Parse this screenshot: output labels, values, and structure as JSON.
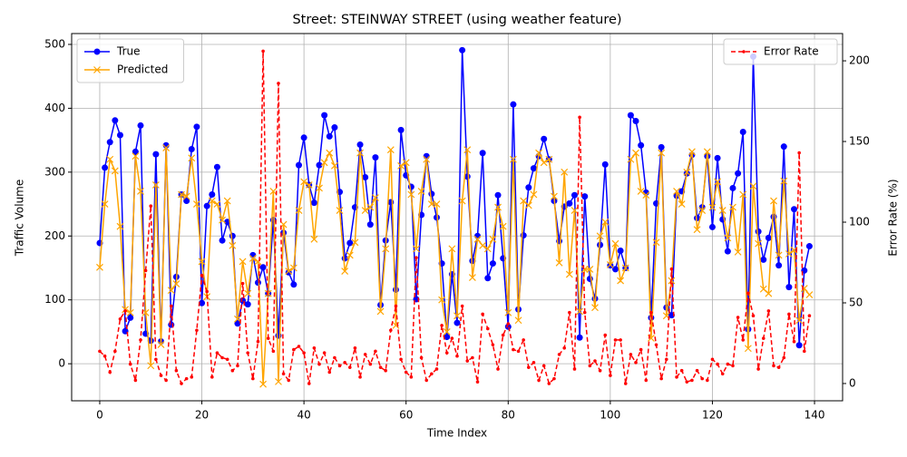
{
  "chart_data": {
    "type": "line",
    "title": "Street: STEINWAY STREET (using weather feature)",
    "x_label": "Time Index",
    "y_label": "Traffic Volume",
    "y2_label": "Error Rate (%)",
    "x": [
      0,
      1,
      2,
      3,
      4,
      5,
      6,
      7,
      8,
      9,
      10,
      11,
      12,
      13,
      14,
      15,
      16,
      17,
      18,
      19,
      20,
      21,
      22,
      23,
      24,
      25,
      26,
      27,
      28,
      29,
      30,
      31,
      32,
      33,
      34,
      35,
      36,
      37,
      38,
      39,
      40,
      41,
      42,
      43,
      44,
      45,
      46,
      47,
      48,
      49,
      50,
      51,
      52,
      53,
      54,
      55,
      56,
      57,
      58,
      59,
      60,
      61,
      62,
      63,
      64,
      65,
      66,
      67,
      68,
      69,
      70,
      71,
      72,
      73,
      74,
      75,
      76,
      77,
      78,
      79,
      80,
      81,
      82,
      83,
      84,
      85,
      86,
      87,
      88,
      89,
      90,
      91,
      92,
      93,
      94,
      95,
      96,
      97,
      98,
      99,
      100,
      101,
      102,
      103,
      104,
      105,
      106,
      107,
      108,
      109,
      110,
      111,
      112,
      113,
      114,
      115,
      116,
      117,
      118,
      119,
      120,
      121,
      122,
      123,
      124,
      125,
      126,
      127,
      128,
      129,
      130,
      131,
      132,
      133,
      134,
      135,
      136,
      137,
      138,
      139
    ],
    "xlim": [
      -5.5,
      145.5
    ],
    "xticks": [
      0,
      20,
      40,
      60,
      80,
      100,
      120,
      140
    ],
    "ylim": [
      -58,
      517
    ],
    "yticks": [
      0,
      100,
      200,
      300,
      400,
      500
    ],
    "y2lim": [
      -10.7,
      216.9
    ],
    "y2ticks": [
      0,
      50,
      100,
      150,
      200
    ],
    "grid": true,
    "legend": "upper left",
    "y2_legend": "upper right",
    "series": [
      {
        "name": "True",
        "color": "#0000ff",
        "marker": "o",
        "linestyle": "solid",
        "values": [
          189,
          307,
          347,
          381,
          358,
          51,
          72,
          332,
          373,
          47,
          36,
          328,
          35,
          342,
          61,
          136,
          265,
          255,
          336,
          371,
          95,
          247,
          265,
          308,
          193,
          222,
          200,
          63,
          99,
          93,
          170,
          127,
          151,
          110,
          225,
          44,
          205,
          143,
          124,
          311,
          354,
          280,
          252,
          311,
          389,
          356,
          370,
          269,
          165,
          189,
          245,
          343,
          292,
          218,
          323,
          92,
          193,
          253,
          116,
          366,
          295,
          277,
          101,
          233,
          325,
          266,
          229,
          157,
          42,
          140,
          64,
          491,
          293,
          161,
          200,
          330,
          134,
          157,
          264,
          165,
          58,
          406,
          85,
          201,
          276,
          306,
          325,
          352,
          320,
          255,
          192,
          246,
          251,
          264,
          41,
          262,
          133,
          102,
          186,
          312,
          154,
          148,
          177,
          150,
          389,
          380,
          342,
          268,
          72,
          251,
          339,
          88,
          76,
          263,
          270,
          298,
          327,
          228,
          245,
          325,
          214,
          322,
          226,
          176,
          275,
          298,
          363,
          54,
          481,
          207,
          163,
          197,
          230,
          154,
          340,
          120,
          242,
          29,
          146,
          184
        ]
      },
      {
        "name": "Predicted",
        "color": "#ffa500",
        "marker": "x",
        "linestyle": "solid",
        "values": [
          151,
          250,
          320,
          302,
          215,
          85,
          80,
          325,
          270,
          80,
          -3,
          280,
          30,
          338,
          115,
          125,
          265,
          262,
          322,
          250,
          160,
          105,
          255,
          250,
          225,
          255,
          185,
          70,
          160,
          110,
          165,
          160,
          -32,
          110,
          270,
          -28,
          218,
          145,
          150,
          240,
          285,
          280,
          195,
          275,
          315,
          330,
          310,
          240,
          145,
          170,
          190,
          330,
          240,
          245,
          260,
          82,
          180,
          335,
          60,
          310,
          315,
          265,
          180,
          270,
          320,
          250,
          250,
          100,
          50,
          180,
          75,
          255,
          335,
          135,
          195,
          185,
          180,
          195,
          245,
          215,
          80,
          320,
          68,
          255,
          248,
          265,
          330,
          315,
          320,
          262,
          158,
          300,
          140,
          240,
          82,
          148,
          148,
          88,
          200,
          222,
          155,
          188,
          130,
          150,
          320,
          330,
          270,
          264,
          40,
          190,
          330,
          75,
          130,
          270,
          250,
          300,
          332,
          210,
          240,
          332,
          245,
          285,
          240,
          197,
          245,
          175,
          265,
          24,
          278,
          188,
          117,
          110,
          255,
          170,
          286,
          172,
          178,
          68,
          118,
          108
        ]
      },
      {
        "name": "Error Rate",
        "color": "#ff0000",
        "marker": ".",
        "linestyle": "dashed",
        "axis": "y2",
        "values": [
          20,
          17,
          7,
          20,
          40,
          45,
          12,
          2,
          27,
          70,
          110,
          15,
          5,
          2,
          48,
          8,
          0,
          3,
          4,
          33,
          67,
          57,
          4,
          19,
          16,
          15,
          8,
          11,
          62,
          19,
          3,
          26,
          206,
          28,
          20,
          186,
          6,
          2,
          21,
          23,
          19,
          0,
          22,
          12,
          19,
          7,
          16,
          11,
          13,
          10,
          22,
          4,
          18,
          12,
          20,
          10,
          8,
          33,
          48,
          15,
          7,
          4,
          78,
          16,
          2,
          6,
          9,
          36,
          19,
          28,
          17,
          48,
          14,
          16,
          1,
          43,
          34,
          24,
          9,
          30,
          37,
          21,
          20,
          27,
          10,
          13,
          2,
          11,
          0,
          3,
          18,
          22,
          44,
          9,
          165,
          44,
          11,
          14,
          8,
          30,
          5,
          27,
          27,
          0,
          18,
          13,
          21,
          2,
          44,
          24,
          3,
          15,
          71,
          4,
          8,
          1,
          2,
          8,
          3,
          2,
          15,
          12,
          6,
          12,
          11,
          41,
          27,
          56,
          42,
          9,
          28,
          45,
          11,
          10,
          16,
          43,
          26,
          143,
          20,
          42
        ]
      }
    ]
  }
}
